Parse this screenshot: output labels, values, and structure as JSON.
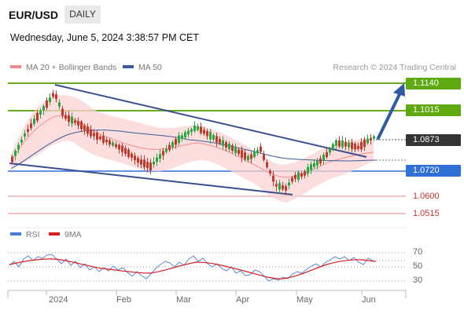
{
  "header": {
    "pair": "EUR/USD",
    "timeframe": "DAILY"
  },
  "timestamp": "Wednesday, June 5, 2024 3:38:57 PM CET",
  "legend": {
    "ma20_label": "MA 20 + Bollinger Bands",
    "ma50_label": "MA 50",
    "credit": "Research © 2024 Trading Central",
    "colors": {
      "ma20": "#f08a8a",
      "ma50": "#3b5b9a"
    }
  },
  "levels": {
    "resistance_2": "1.1140",
    "resistance_1": "1.1015",
    "current": "1.0873",
    "support_1": "1.0720",
    "support_2": "1.0600",
    "support_3": "1.0515",
    "colors": {
      "resistance": "#6aaa1e",
      "current": "#333333",
      "support": "#2f6fd6",
      "lower": "#d0312d"
    }
  },
  "rsi": {
    "rsi_label": "RSI",
    "ma_label": "9MA",
    "axis": [
      "70",
      "50",
      "30"
    ],
    "colors": {
      "rsi": "#4a7bd6",
      "ma": "#d61f1f"
    }
  },
  "xaxis": {
    "labels": [
      "2024",
      "Feb",
      "Mar",
      "Apr",
      "May",
      "Jun"
    ]
  }
}
